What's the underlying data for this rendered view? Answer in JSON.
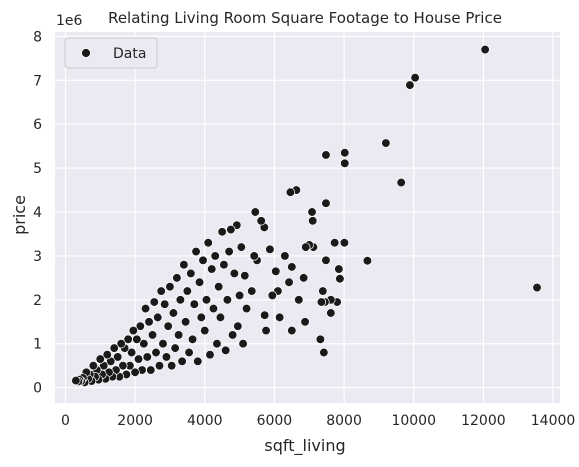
{
  "chart_data": {
    "type": "scatter",
    "title": "Relating Living Room Square Footage to House Price",
    "xlabel": "sqft_living",
    "ylabel": "price",
    "y_offset_label": "1e6",
    "xlim": [
      -300,
      14200
    ],
    "ylim": [
      -350000,
      8100000
    ],
    "x_ticks": [
      {
        "value": 0,
        "label": "0"
      },
      {
        "value": 2000,
        "label": "2000"
      },
      {
        "value": 4000,
        "label": "4000"
      },
      {
        "value": 6000,
        "label": "6000"
      },
      {
        "value": 8000,
        "label": "8000"
      },
      {
        "value": 10000,
        "label": "10000"
      },
      {
        "value": 12000,
        "label": "12000"
      },
      {
        "value": 14000,
        "label": "14000"
      }
    ],
    "y_ticks": [
      {
        "value": 0,
        "label": "0"
      },
      {
        "value": 1000000,
        "label": "1"
      },
      {
        "value": 2000000,
        "label": "2"
      },
      {
        "value": 3000000,
        "label": "3"
      },
      {
        "value": 4000000,
        "label": "4"
      },
      {
        "value": 5000000,
        "label": "5"
      },
      {
        "value": 6000000,
        "label": "6"
      },
      {
        "value": 7000000,
        "label": "7"
      },
      {
        "value": 8000000,
        "label": "8"
      }
    ],
    "grid": true,
    "legend": {
      "position": "top-left",
      "entries": [
        "Data"
      ]
    },
    "colors": {
      "background": "#eaeaf2",
      "grid": "#ffffff",
      "marker": "#1a1a1a",
      "marker_edge": "#ffffff",
      "text": "#262626"
    },
    "series": [
      {
        "name": "Data",
        "points": [
          [
            13540,
            2280000
          ],
          [
            12050,
            7700000
          ],
          [
            10040,
            7060000
          ],
          [
            9890,
            6890000
          ],
          [
            9640,
            4670000
          ],
          [
            9200,
            5570000
          ],
          [
            8670,
            2890000
          ],
          [
            8020,
            5350000
          ],
          [
            8020,
            5110000
          ],
          [
            8010,
            3300000
          ],
          [
            7850,
            2700000
          ],
          [
            7880,
            2480000
          ],
          [
            7800,
            1950000
          ],
          [
            7730,
            3300000
          ],
          [
            7620,
            2000000
          ],
          [
            7620,
            1700000
          ],
          [
            7480,
            5300000
          ],
          [
            7480,
            4200000
          ],
          [
            7480,
            2900000
          ],
          [
            7450,
            1950000
          ],
          [
            7390,
            2200000
          ],
          [
            7350,
            1950000
          ],
          [
            7320,
            1100000
          ],
          [
            7420,
            800000
          ],
          [
            7120,
            3200000
          ],
          [
            7100,
            3800000
          ],
          [
            7080,
            4000000
          ],
          [
            7000,
            3250000
          ],
          [
            6900,
            3200000
          ],
          [
            6880,
            1500000
          ],
          [
            6840,
            2500000
          ],
          [
            6700,
            2000000
          ],
          [
            6630,
            4500000
          ],
          [
            6500,
            2750000
          ],
          [
            6500,
            1300000
          ],
          [
            6460,
            4450000
          ],
          [
            6420,
            2400000
          ],
          [
            6300,
            3000000
          ],
          [
            6150,
            1600000
          ],
          [
            6100,
            2200000
          ],
          [
            6040,
            2650000
          ],
          [
            5940,
            2100000
          ],
          [
            5870,
            3150000
          ],
          [
            5760,
            1300000
          ],
          [
            5720,
            1650000
          ],
          [
            5710,
            3650000
          ],
          [
            5620,
            3800000
          ],
          [
            5500,
            2900000
          ],
          [
            5450,
            4000000
          ],
          [
            5420,
            3000000
          ],
          [
            5350,
            2200000
          ],
          [
            5200,
            1800000
          ],
          [
            5150,
            2550000
          ],
          [
            5100,
            1000000
          ],
          [
            5050,
            3200000
          ],
          [
            5000,
            2100000
          ],
          [
            4950,
            1400000
          ],
          [
            4920,
            3700000
          ],
          [
            4850,
            2600000
          ],
          [
            4800,
            1200000
          ],
          [
            4750,
            3600000
          ],
          [
            4700,
            3100000
          ],
          [
            4650,
            2000000
          ],
          [
            4600,
            850000
          ],
          [
            4550,
            2800000
          ],
          [
            4500,
            3550000
          ],
          [
            4450,
            1600000
          ],
          [
            4400,
            2300000
          ],
          [
            4350,
            1000000
          ],
          [
            4300,
            3000000
          ],
          [
            4250,
            1800000
          ],
          [
            4200,
            2700000
          ],
          [
            4150,
            750000
          ],
          [
            4100,
            3300000
          ],
          [
            4050,
            2000000
          ],
          [
            4000,
            1300000
          ],
          [
            3950,
            2900000
          ],
          [
            3900,
            1600000
          ],
          [
            3850,
            2400000
          ],
          [
            3800,
            600000
          ],
          [
            3750,
            3100000
          ],
          [
            3700,
            1900000
          ],
          [
            3650,
            1100000
          ],
          [
            3600,
            2600000
          ],
          [
            3550,
            800000
          ],
          [
            3500,
            2200000
          ],
          [
            3450,
            1500000
          ],
          [
            3400,
            2800000
          ],
          [
            3350,
            600000
          ],
          [
            3300,
            2000000
          ],
          [
            3250,
            1200000
          ],
          [
            3200,
            2500000
          ],
          [
            3150,
            900000
          ],
          [
            3100,
            1700000
          ],
          [
            3050,
            500000
          ],
          [
            3000,
            2300000
          ],
          [
            2950,
            1400000
          ],
          [
            2900,
            700000
          ],
          [
            2850,
            1900000
          ],
          [
            2800,
            1000000
          ],
          [
            2750,
            2200000
          ],
          [
            2700,
            500000
          ],
          [
            2650,
            1600000
          ],
          [
            2600,
            800000
          ],
          [
            2550,
            1950000
          ],
          [
            2500,
            1200000
          ],
          [
            2450,
            400000
          ],
          [
            2400,
            1500000
          ],
          [
            2350,
            700000
          ],
          [
            2300,
            1800000
          ],
          [
            2250,
            1000000
          ],
          [
            2200,
            400000
          ],
          [
            2150,
            1400000
          ],
          [
            2100,
            650000
          ],
          [
            2050,
            1100000
          ],
          [
            2000,
            350000
          ],
          [
            1950,
            1300000
          ],
          [
            1900,
            800000
          ],
          [
            1850,
            500000
          ],
          [
            1800,
            1100000
          ],
          [
            1750,
            300000
          ],
          [
            1700,
            900000
          ],
          [
            1650,
            500000
          ],
          [
            1600,
            1000000
          ],
          [
            1550,
            250000
          ],
          [
            1500,
            700000
          ],
          [
            1450,
            400000
          ],
          [
            1400,
            900000
          ],
          [
            1350,
            250000
          ],
          [
            1300,
            600000
          ],
          [
            1250,
            350000
          ],
          [
            1200,
            750000
          ],
          [
            1150,
            200000
          ],
          [
            1100,
            500000
          ],
          [
            1050,
            300000
          ],
          [
            1000,
            650000
          ],
          [
            950,
            180000
          ],
          [
            900,
            400000
          ],
          [
            850,
            250000
          ],
          [
            800,
            500000
          ],
          [
            750,
            150000
          ],
          [
            700,
            300000
          ],
          [
            650,
            200000
          ],
          [
            600,
            350000
          ],
          [
            550,
            120000
          ],
          [
            500,
            220000
          ],
          [
            450,
            150000
          ],
          [
            400,
            180000
          ],
          [
            370,
            140000
          ],
          [
            300,
            160000
          ]
        ]
      }
    ]
  }
}
